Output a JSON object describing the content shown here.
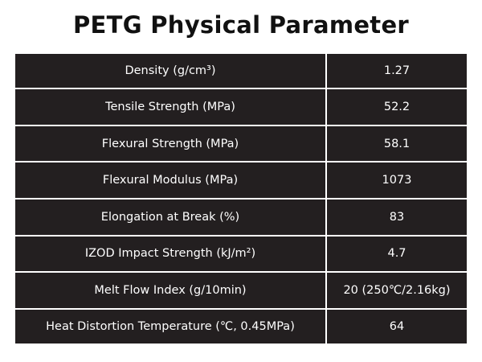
{
  "header": {
    "title": "PETG Physical Parameter"
  },
  "table": {
    "rows": [
      [
        "Density (g/cm³)",
        "1.27"
      ],
      [
        "Tensile Strength (MPa)",
        "52.2"
      ],
      [
        "Flexural Strength (MPa)",
        "58.1"
      ],
      [
        "Flexural Modulus (MPa)",
        "1073"
      ],
      [
        "Elongation at Break (%)",
        "83"
      ],
      [
        "IZOD Impact Strength (kJ/m²)",
        "4.7"
      ],
      [
        "Melt Flow Index (g/10min)",
        "20 (250℃/2.16kg)"
      ],
      [
        "Heat Distortion Temperature (℃, 0.45MPa)",
        "64"
      ]
    ]
  }
}
